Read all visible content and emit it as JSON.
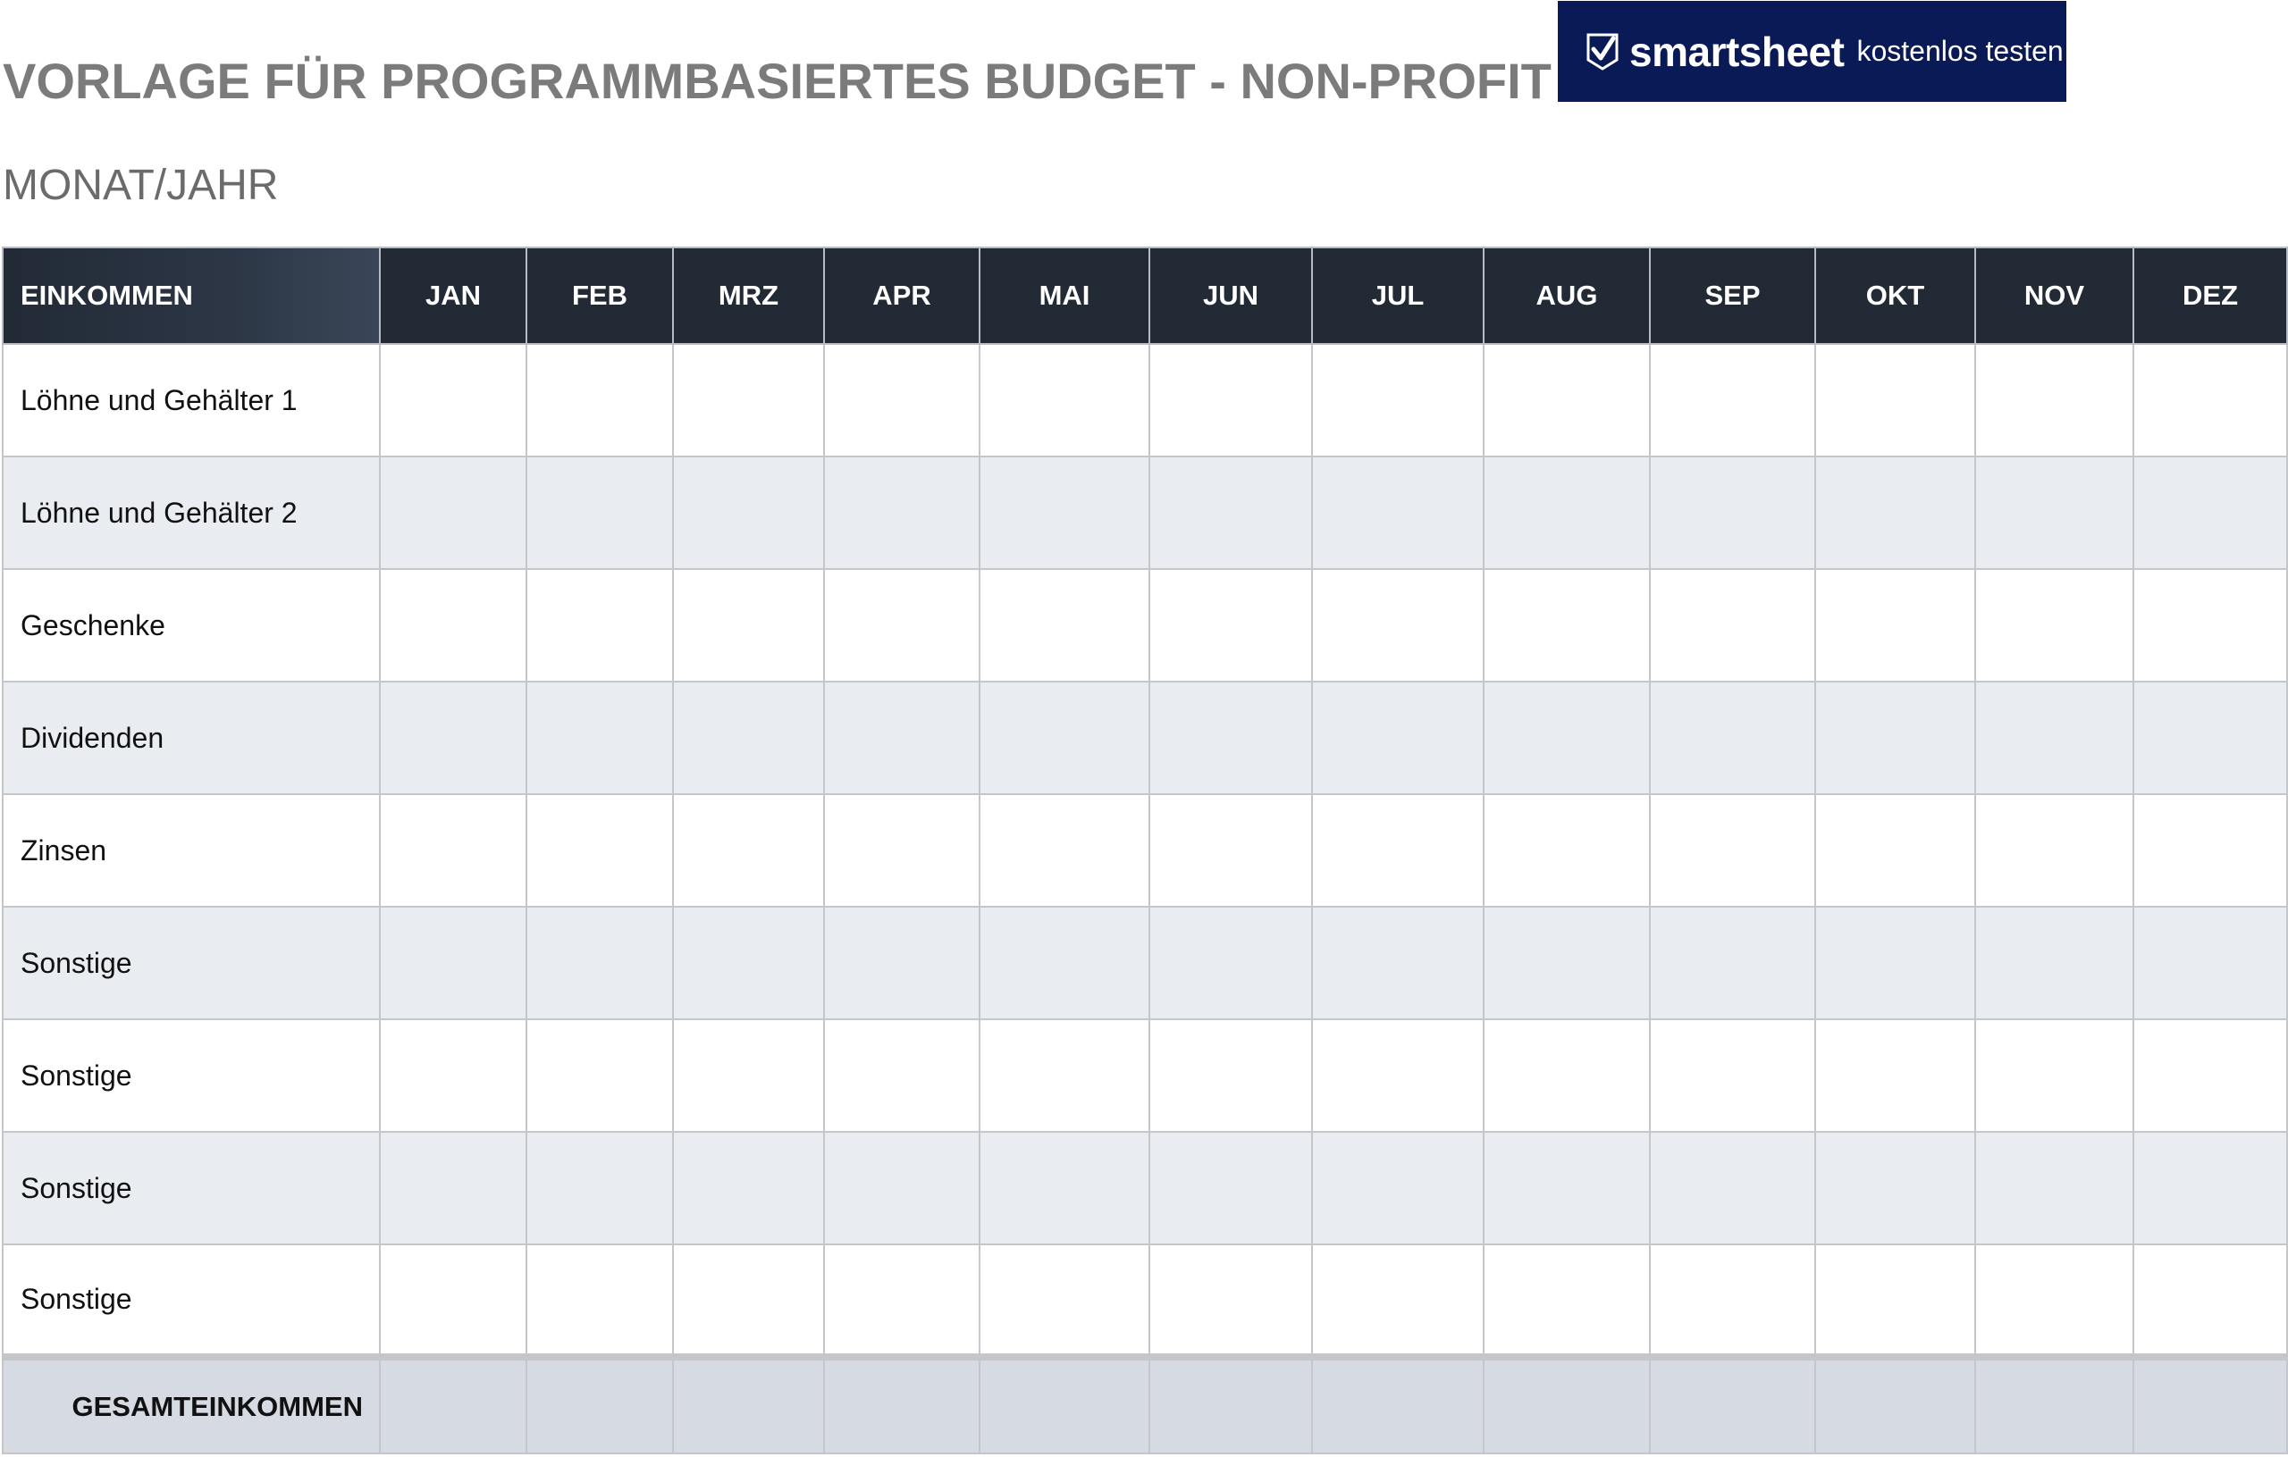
{
  "title": "VORLAGE FÜR PROGRAMMBASIERTES BUDGET - NON-PROFIT",
  "subtitle": "MONAT/JAHR",
  "logo": {
    "wordmark": "smartsheet",
    "cta": "kostenlos testen",
    "icon": "checkmark-icon",
    "background_color": "#0a1a57"
  },
  "table": {
    "label_header": "EINKOMMEN",
    "months": [
      "JAN",
      "FEB",
      "MRZ",
      "APR",
      "MAI",
      "JUN",
      "JUL",
      "AUG",
      "SEP",
      "OKT",
      "NOV",
      "DEZ"
    ],
    "rows": [
      "Löhne und Gehälter 1",
      "Löhne und Gehälter 2",
      "Geschenke",
      "Dividenden",
      "Zinsen",
      "Sonstige",
      "Sonstige",
      "Sonstige",
      "Sonstige"
    ],
    "total_label": "GESAMTEINKOMMEN"
  },
  "colors": {
    "header_bg": "#222a36",
    "alt_row_bg": "#e9ecf0",
    "total_row_bg": "#d6dbe3",
    "title_color": "#7b7b7b"
  }
}
